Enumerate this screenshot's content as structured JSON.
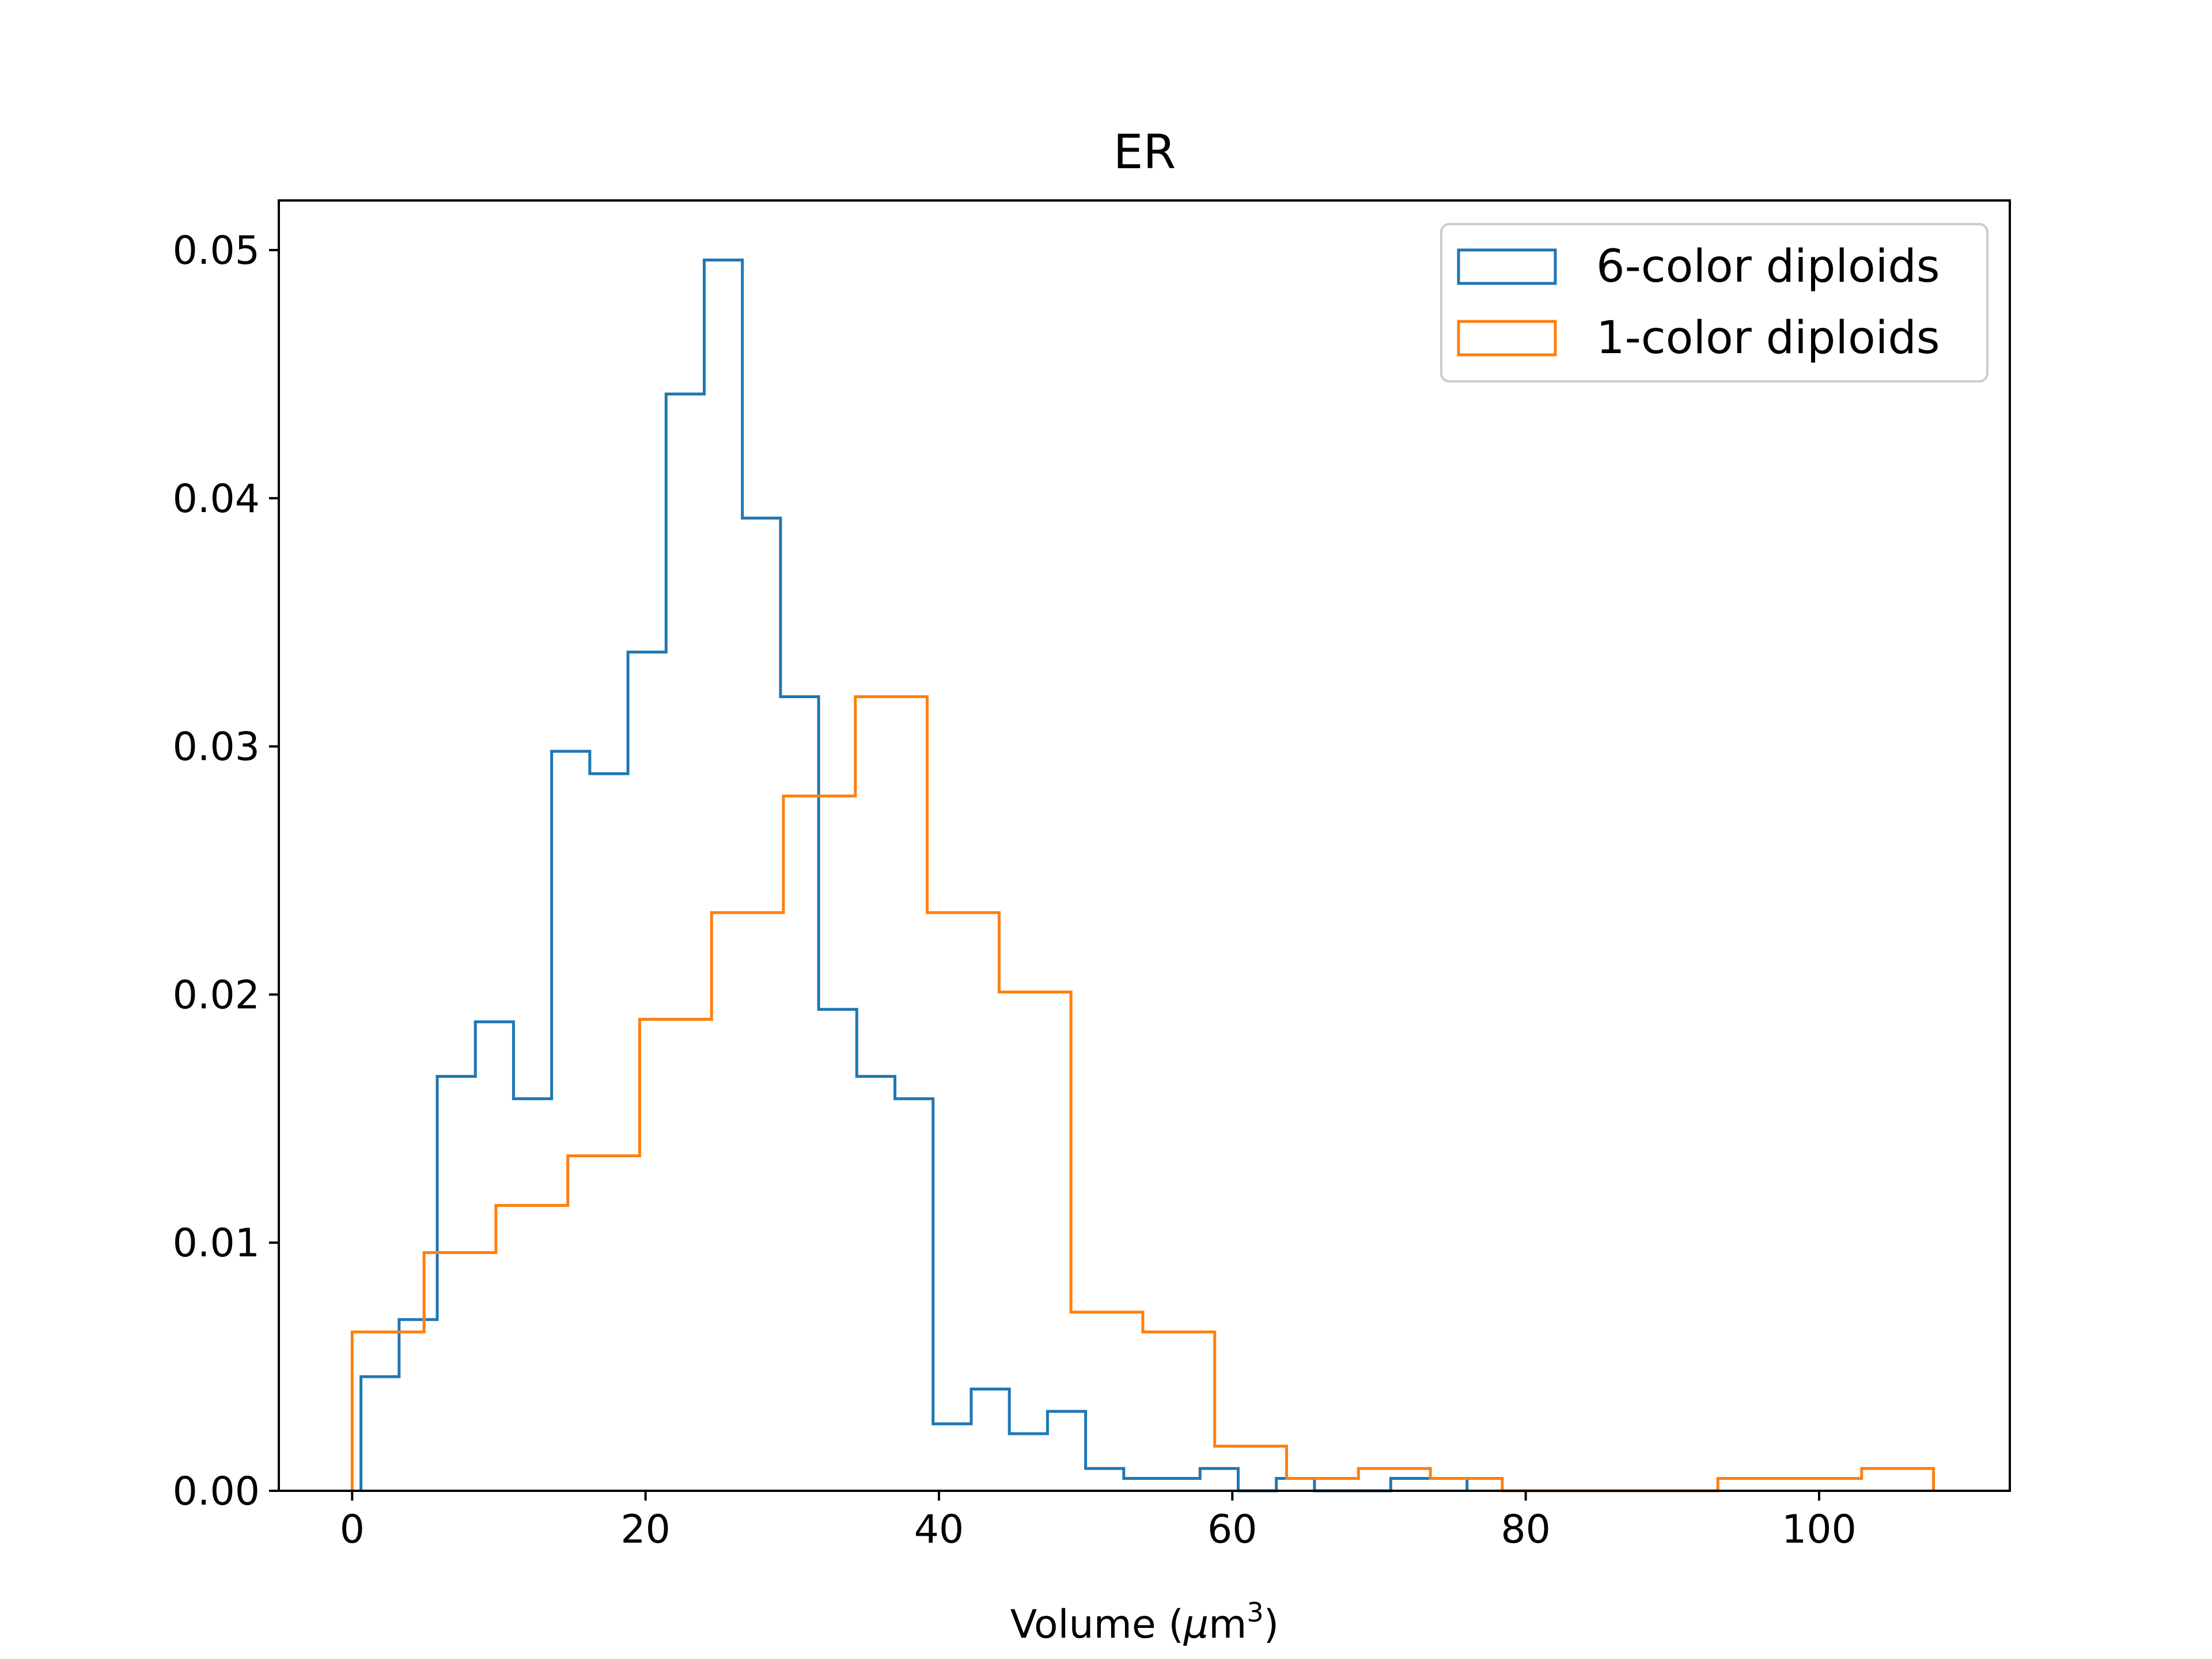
{
  "chart_data": {
    "type": "histogram",
    "title": "ER",
    "xlabel": "Volume ($\\mu$m$^3$)",
    "xlabel_parts": {
      "main": "Volume (",
      "mu": "μ",
      "m": "m",
      "sup": "3",
      "close": ")"
    },
    "ylabel": "",
    "xlim": [
      -5,
      113
    ],
    "ylim": [
      0,
      0.052
    ],
    "x_ticks": [
      0,
      20,
      40,
      60,
      80,
      100
    ],
    "x_tick_labels": [
      "0",
      "20",
      "40",
      "60",
      "80",
      "100"
    ],
    "y_ticks": [
      0,
      0.01,
      0.02,
      0.03,
      0.04,
      0.05
    ],
    "y_tick_labels": [
      "0.00",
      "0.01",
      "0.02",
      "0.03",
      "0.04",
      "0.05"
    ],
    "grid": false,
    "legend_position": "top-right",
    "series": [
      {
        "name": "6-color diploids",
        "color": "#1f77b4",
        "bin_edges": [
          0.6,
          3.2,
          5.8,
          8.4,
          11.0,
          13.6,
          16.2,
          18.8,
          21.4,
          24.0,
          26.6,
          29.2,
          31.8,
          34.4,
          37.0,
          39.6,
          42.2,
          44.8,
          47.4,
          50.0,
          52.6,
          55.2,
          57.8,
          60.4,
          63.0,
          65.6,
          68.2,
          70.8,
          73.4,
          76.0
        ],
        "values": [
          0.0046,
          0.0069,
          0.0167,
          0.0189,
          0.0158,
          0.0298,
          0.0289,
          0.0338,
          0.0442,
          0.0496,
          0.0392,
          0.032,
          0.0194,
          0.0167,
          0.0158,
          0.0027,
          0.0041,
          0.0023,
          0.0032,
          0.0009,
          0.0005,
          0.0005,
          0.0009,
          0.0,
          0.0005,
          0.0,
          0.0,
          0.0005,
          0.0005
        ]
      },
      {
        "name": "1-color diploids",
        "color": "#ff7f0e",
        "bin_edges": [
          0.0,
          4.9,
          9.8,
          14.7,
          19.6,
          24.5,
          29.4,
          34.3,
          39.2,
          44.1,
          49.0,
          53.9,
          58.8,
          63.7,
          68.6,
          73.5,
          78.4,
          83.3,
          88.2,
          93.1,
          98.0,
          102.9,
          107.8
        ],
        "values": [
          0.0064,
          0.0096,
          0.0115,
          0.0135,
          0.019,
          0.0233,
          0.028,
          0.032,
          0.0233,
          0.0201,
          0.0072,
          0.0064,
          0.0018,
          0.0005,
          0.0009,
          0.0005,
          0.0,
          0.0,
          0.0,
          0.0005,
          0.0005,
          0.0009
        ]
      }
    ]
  }
}
